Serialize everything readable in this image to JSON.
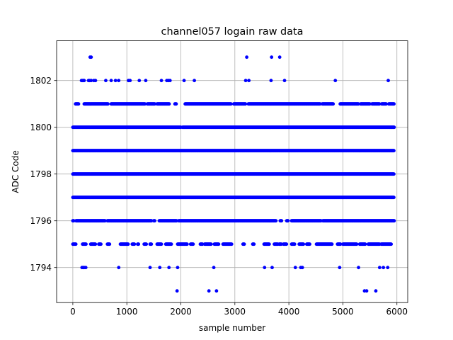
{
  "chart_data": {
    "type": "scatter",
    "title": "channel057 logain raw data",
    "xlabel": "sample number",
    "ylabel": "ADC Code",
    "xlim": [
      -300,
      6200
    ],
    "ylim": [
      1792.5,
      1803.7
    ],
    "xticks": [
      0,
      1000,
      2000,
      3000,
      4000,
      5000,
      6000
    ],
    "yticks": [
      1794,
      1796,
      1798,
      1800,
      1802
    ],
    "grid": true,
    "marker_color": "#0000ff",
    "n_samples": 5950,
    "series": [
      {
        "bands": [
          {
            "y": 1793,
            "x_values": [
              1930,
              2520,
              2660,
              5400,
              5440,
              5610
            ]
          },
          {
            "y": 1794,
            "x_values": [
              170,
              190,
              210,
              240,
              850,
              1430,
              1610,
              1780,
              1940,
              2610,
              3550,
              3690,
              4120,
              4220,
              4250,
              4940,
              5290,
              5680,
              5750,
              5830
            ]
          },
          {
            "y": 1795,
            "segments": [
              [
                0,
                60
              ],
              [
                180,
                250
              ],
              [
                330,
                420
              ],
              [
                480,
                520
              ],
              [
                640,
                680
              ],
              [
                880,
                1030
              ],
              [
                1100,
                1140
              ],
              [
                1200,
                1220
              ],
              [
                1320,
                1360
              ],
              [
                1430,
                1460
              ],
              [
                1560,
                1640
              ],
              [
                1720,
                1830
              ],
              [
                1940,
                2120
              ],
              [
                2180,
                2230
              ],
              [
                2360,
                2400
              ],
              [
                2440,
                2560
              ],
              [
                2620,
                2700
              ],
              [
                2780,
                2940
              ],
              [
                3150,
                3180
              ],
              [
                3330,
                3360
              ],
              [
                3540,
                3640
              ],
              [
                3730,
                3800
              ],
              [
                3820,
                3860
              ],
              [
                3900,
                3960
              ],
              [
                4050,
                4110
              ],
              [
                4190,
                4270
              ],
              [
                4330,
                4390
              ],
              [
                4510,
                4800
              ],
              [
                4900,
                4960
              ],
              [
                5000,
                5260
              ],
              [
                5310,
                5420
              ],
              [
                5470,
                5680
              ],
              [
                5710,
                5900
              ]
            ]
          },
          {
            "y": 1796,
            "segments": [
              [
                0,
                20
              ],
              [
                60,
                600
              ],
              [
                640,
                1460
              ],
              [
                1500,
                1520
              ],
              [
                1600,
                1920
              ],
              [
                1960,
                3760
              ],
              [
                3840,
                3870
              ],
              [
                3960,
                3990
              ],
              [
                4050,
                4600
              ],
              [
                4630,
                5950
              ]
            ]
          },
          {
            "y": 1797,
            "segments": [
              [
                0,
                5950
              ]
            ]
          },
          {
            "y": 1798,
            "segments": [
              [
                0,
                5950
              ]
            ]
          },
          {
            "y": 1799,
            "segments": [
              [
                0,
                5950
              ]
            ]
          },
          {
            "y": 1800,
            "segments": [
              [
                0,
                2000
              ],
              [
                2030,
                5950
              ]
            ]
          },
          {
            "y": 1801,
            "segments": [
              [
                50,
                110
              ],
              [
                210,
                650
              ],
              [
                710,
                1340
              ],
              [
                1380,
                1520
              ],
              [
                1560,
                1790
              ],
              [
                1890,
                1920
              ],
              [
                2080,
                2930
              ],
              [
                2980,
                3200
              ],
              [
                3250,
                4580
              ],
              [
                4620,
                4820
              ],
              [
                4950,
                5290
              ],
              [
                5330,
                5500
              ],
              [
                5540,
                5680
              ],
              [
                5720,
                5800
              ],
              [
                5850,
                5950
              ]
            ]
          },
          {
            "y": 1802,
            "x_values": [
              160,
              180,
              200,
              210,
              290,
              310,
              340,
              390,
              420,
              610,
              710,
              790,
              850,
              1030,
              1060,
              1230,
              1350,
              1640,
              1740,
              1770,
              1800,
              2060,
              2250,
              3200,
              3260,
              3670,
              3920,
              4860,
              5840
            ]
          },
          {
            "y": 1803,
            "x_values": [
              320,
              340,
              3220,
              3680,
              3830
            ]
          }
        ]
      }
    ]
  }
}
